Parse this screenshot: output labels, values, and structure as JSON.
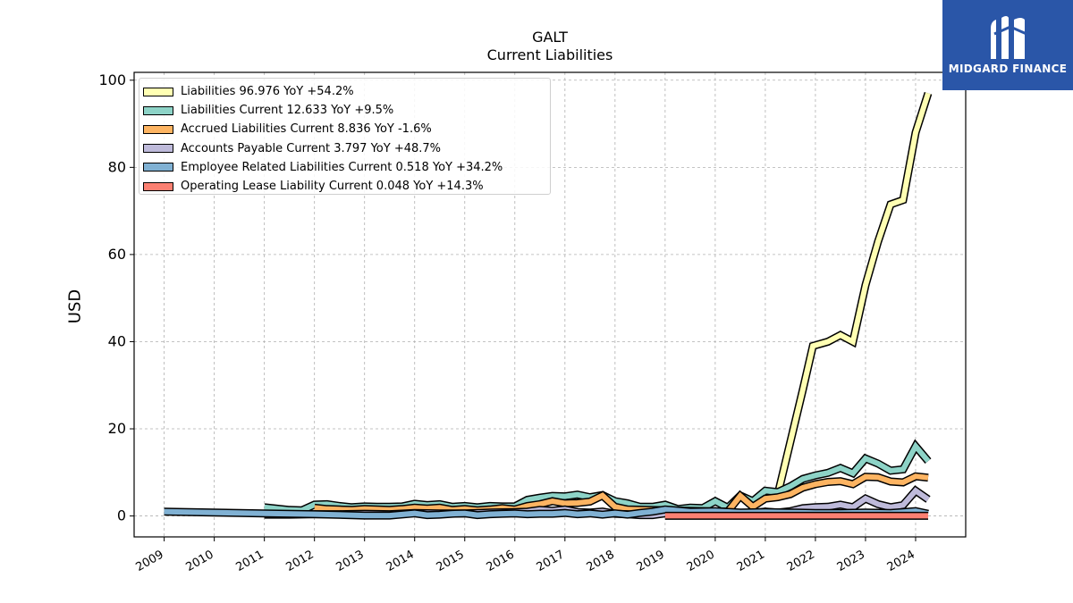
{
  "header": {
    "ticker": "GALT",
    "subtitle": "Current  Liabilities"
  },
  "logo": {
    "name": "MIDGARD FINANCE",
    "icon": "midgard-m-logo-icon",
    "background": "#2a56a8"
  },
  "legend": {
    "items": [
      {
        "label": "Liabilities  96.976 YoY +54.2%",
        "color": "#ffffb3"
      },
      {
        "label": "Liabilities Current  12.633 YoY +9.5%",
        "color": "#8dd3c7"
      },
      {
        "label": "Accrued Liabilities Current  8.836 YoY -1.6%",
        "color": "#fdb462"
      },
      {
        "label": "Accounts Payable Current  3.797 YoY +48.7%",
        "color": "#bebada"
      },
      {
        "label": "Employee Related Liabilities Current  0.518 YoY +34.2%",
        "color": "#80b1d3"
      },
      {
        "label": "Operating Lease Liability Current  0.048 YoY +14.3%",
        "color": "#fb8072"
      }
    ]
  },
  "chart_data": {
    "type": "line",
    "title": "GALT",
    "subtitle": "Current  Liabilities",
    "ylabel": "USD",
    "xlim": [
      2008.4,
      2025.0
    ],
    "ylim": [
      -4.8,
      101.8
    ],
    "yticks": [
      0,
      20,
      40,
      60,
      80,
      100
    ],
    "xticks": [
      "2009",
      "2010",
      "2011",
      "2012",
      "2013",
      "2014",
      "2015",
      "2016",
      "2017",
      "2018",
      "2019",
      "2020",
      "2021",
      "2022",
      "2023",
      "2024"
    ],
    "grid": true,
    "legend_position": "upper-left",
    "series": [
      {
        "name": "Liabilities",
        "color": "#ffffb3",
        "x": [
          2021.25,
          2021.5,
          2021.75,
          2021.95,
          2022.25,
          2022.5,
          2022.75,
          2023.0,
          2023.25,
          2023.5,
          2023.75,
          2024.0,
          2024.25
        ],
        "y": [
          5.0,
          17.0,
          29.0,
          39.0,
          40.0,
          41.5,
          40.0,
          53.0,
          63.0,
          71.5,
          72.5,
          88.0,
          97.0
        ]
      },
      {
        "name": "Liabilities Current",
        "color": "#8dd3c7",
        "x": [
          2011.0,
          2011.5,
          2011.75,
          2012.0,
          2012.25,
          2012.5,
          2012.75,
          2013.0,
          2013.25,
          2013.5,
          2013.75,
          2014.0,
          2014.25,
          2014.5,
          2014.75,
          2015.0,
          2015.25,
          2015.5,
          2015.75,
          2016.0,
          2016.25,
          2016.5,
          2016.75,
          2017.0,
          2017.25,
          2017.5,
          2017.75,
          2018.0,
          2018.25,
          2018.5,
          2018.75,
          2019.0,
          2019.25,
          2019.5,
          2019.75,
          2020.0,
          2020.25,
          2020.5,
          2020.75,
          2021.0,
          2021.25,
          2021.5,
          2021.75,
          2022.0,
          2022.25,
          2022.5,
          2022.75,
          2023.0,
          2023.25,
          2023.5,
          2023.75,
          2024.0,
          2024.25
        ],
        "y": [
          2.0,
          1.4,
          1.3,
          2.6,
          2.7,
          2.3,
          2.0,
          2.2,
          2.1,
          2.1,
          2.2,
          2.8,
          2.5,
          2.7,
          2.1,
          2.3,
          2.0,
          2.3,
          2.2,
          2.2,
          3.7,
          4.2,
          4.6,
          4.5,
          4.9,
          4.3,
          4.8,
          3.4,
          2.9,
          2.1,
          2.1,
          2.6,
          1.6,
          1.9,
          1.8,
          3.4,
          1.9,
          4.7,
          3.4,
          5.8,
          5.5,
          6.8,
          8.5,
          9.3,
          9.9,
          11.0,
          9.8,
          13.2,
          12.0,
          10.4,
          10.7,
          16.0,
          12.6
        ]
      },
      {
        "name": "Accrued Liabilities Current",
        "color": "#fdb462",
        "x": [
          2012.0,
          2012.25,
          2012.5,
          2012.75,
          2013.0,
          2013.25,
          2013.5,
          2013.75,
          2014.0,
          2014.25,
          2014.5,
          2014.75,
          2015.0,
          2015.25,
          2015.5,
          2015.75,
          2016.0,
          2016.25,
          2016.5,
          2016.75,
          2017.0,
          2017.25,
          2017.5,
          2017.75,
          2018.0,
          2018.25,
          2020.25,
          2020.5,
          2020.75,
          2021.0,
          2021.25,
          2021.5,
          2021.75,
          2022.0,
          2022.25,
          2022.5,
          2022.75,
          2023.0,
          2023.25,
          2023.5,
          2023.75,
          2024.0,
          2024.25
        ],
        "y": [
          1.9,
          1.6,
          1.5,
          1.4,
          1.6,
          1.5,
          1.4,
          1.6,
          1.9,
          1.7,
          1.9,
          1.4,
          1.6,
          1.3,
          1.5,
          1.8,
          1.5,
          2.3,
          2.7,
          3.4,
          2.9,
          3.0,
          3.3,
          4.7,
          2.1,
          1.5,
          1.0,
          4.6,
          2.1,
          4.0,
          4.3,
          5.0,
          6.5,
          7.3,
          7.8,
          8.0,
          7.3,
          9.0,
          8.9,
          7.9,
          7.7,
          9.1,
          8.8
        ]
      },
      {
        "name": "Accounts Payable Current",
        "color": "#bebada",
        "x": [
          2011.0,
          2011.5,
          2012.0,
          2012.5,
          2013.0,
          2013.5,
          2014.0,
          2014.5,
          2015.0,
          2015.5,
          2016.0,
          2016.25,
          2016.5,
          2016.75,
          2017.0,
          2017.25,
          2017.5,
          2017.75,
          2018.0,
          2018.25,
          2018.5,
          2018.75,
          2019.0,
          2019.25,
          2019.5,
          2019.75,
          2020.0,
          2020.25,
          2020.5,
          2020.75,
          2021.0,
          2021.25,
          2021.5,
          2021.75,
          2022.0,
          2022.25,
          2022.5,
          2022.75,
          2023.0,
          2023.25,
          2023.5,
          2023.75,
          2024.0,
          2024.25
        ],
        "y": [
          0.3,
          0.3,
          0.4,
          0.4,
          0.5,
          0.4,
          0.7,
          0.6,
          0.6,
          0.8,
          0.9,
          1.0,
          1.4,
          1.2,
          1.5,
          0.9,
          0.8,
          1.0,
          0.5,
          0.4,
          0.2,
          0.2,
          0.6,
          0.6,
          0.5,
          0.6,
          1.0,
          0.7,
          0.7,
          0.7,
          1.0,
          0.8,
          1.1,
          1.8,
          2.0,
          2.1,
          2.6,
          2.0,
          4.0,
          2.7,
          2.0,
          2.5,
          5.8,
          3.8
        ]
      },
      {
        "name": "Employee Related Liabilities Current",
        "color": "#80b1d3",
        "x": [
          2009.0,
          2010.0,
          2011.0,
          2012.0,
          2013.0,
          2013.5,
          2014.0,
          2014.25,
          2014.5,
          2014.75,
          2015.0,
          2015.25,
          2015.5,
          2015.75,
          2016.0,
          2016.25,
          2016.5,
          2016.75,
          2017.0,
          2017.25,
          2017.5,
          2017.75,
          2018.0,
          2018.25,
          2018.5,
          2018.75,
          2019.0,
          2019.5,
          2020.0,
          2020.5,
          2021.0,
          2021.5,
          2022.0,
          2022.5,
          2023.0,
          2023.5,
          2024.0,
          2024.25
        ],
        "y": [
          1.0,
          0.8,
          0.6,
          0.4,
          0.1,
          0.1,
          0.6,
          0.2,
          0.3,
          0.5,
          0.6,
          0.2,
          0.4,
          0.5,
          0.6,
          0.4,
          0.5,
          0.5,
          0.7,
          0.4,
          0.6,
          0.3,
          0.6,
          0.3,
          0.7,
          1.0,
          1.5,
          1.0,
          1.1,
          0.8,
          0.9,
          0.8,
          0.7,
          0.7,
          0.8,
          0.7,
          1.1,
          0.5
        ]
      },
      {
        "name": "Operating Lease Liability Current",
        "color": "#fb8072",
        "x": [
          2019.0,
          2020.0,
          2021.0,
          2022.0,
          2023.0,
          2024.0,
          2024.25
        ],
        "y": [
          0.04,
          0.04,
          0.04,
          0.04,
          0.04,
          0.045,
          0.048
        ]
      }
    ]
  }
}
